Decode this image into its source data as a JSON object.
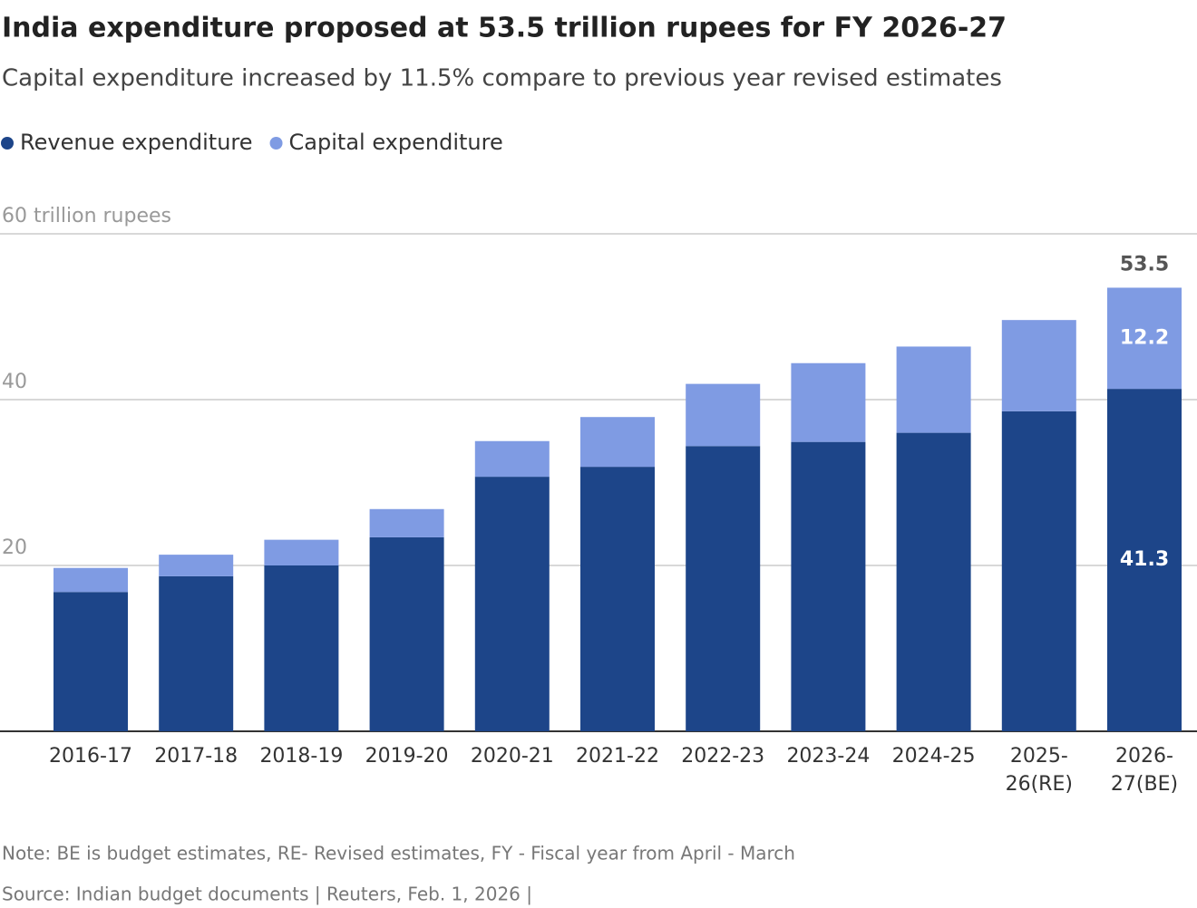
{
  "chart_data": {
    "type": "stacked_bar",
    "title": "India expenditure proposed at 53.5 trillion rupees for FY 2026-27",
    "subtitle": "Capital expenditure increased by 11.5% compare to previous year revised estimates",
    "categories": [
      "2016-17",
      "2017-18",
      "2018-19",
      "2019-20",
      "2020-21",
      "2021-22",
      "2022-23",
      "2023-24",
      "2024-25",
      "2025-26(RE)",
      "2026-27(BE)"
    ],
    "series": [
      {
        "name": "Revenue expenditure",
        "color": "#1d4589",
        "values": [
          16.8,
          18.7,
          20.0,
          23.4,
          30.7,
          31.9,
          34.4,
          34.9,
          36.0,
          38.6,
          41.3
        ],
        "value_labels": [
          null,
          null,
          null,
          null,
          null,
          null,
          null,
          null,
          null,
          null,
          "41.3"
        ]
      },
      {
        "name": "Capital expenditure",
        "color": "#7f9be3",
        "values": [
          2.9,
          2.6,
          3.1,
          3.4,
          4.3,
          6.0,
          7.5,
          9.5,
          10.4,
          11.0,
          12.2
        ],
        "value_labels": [
          null,
          null,
          null,
          null,
          null,
          null,
          null,
          null,
          null,
          null,
          "12.2"
        ]
      }
    ],
    "total_annotation": {
      "category": "2026-27(BE)",
      "value": 53.5
    },
    "ylim": [
      0,
      60
    ],
    "yticks": [
      20,
      40,
      {
        "value": 60,
        "label": "60 trillion rupees"
      }
    ],
    "grid": true,
    "note": "Note: BE is budget estimates, RE- Revised estimates, FY - Fiscal year from April - March",
    "source": "Source: Indian budget documents | Reuters, Feb. 1, 2026 |"
  }
}
